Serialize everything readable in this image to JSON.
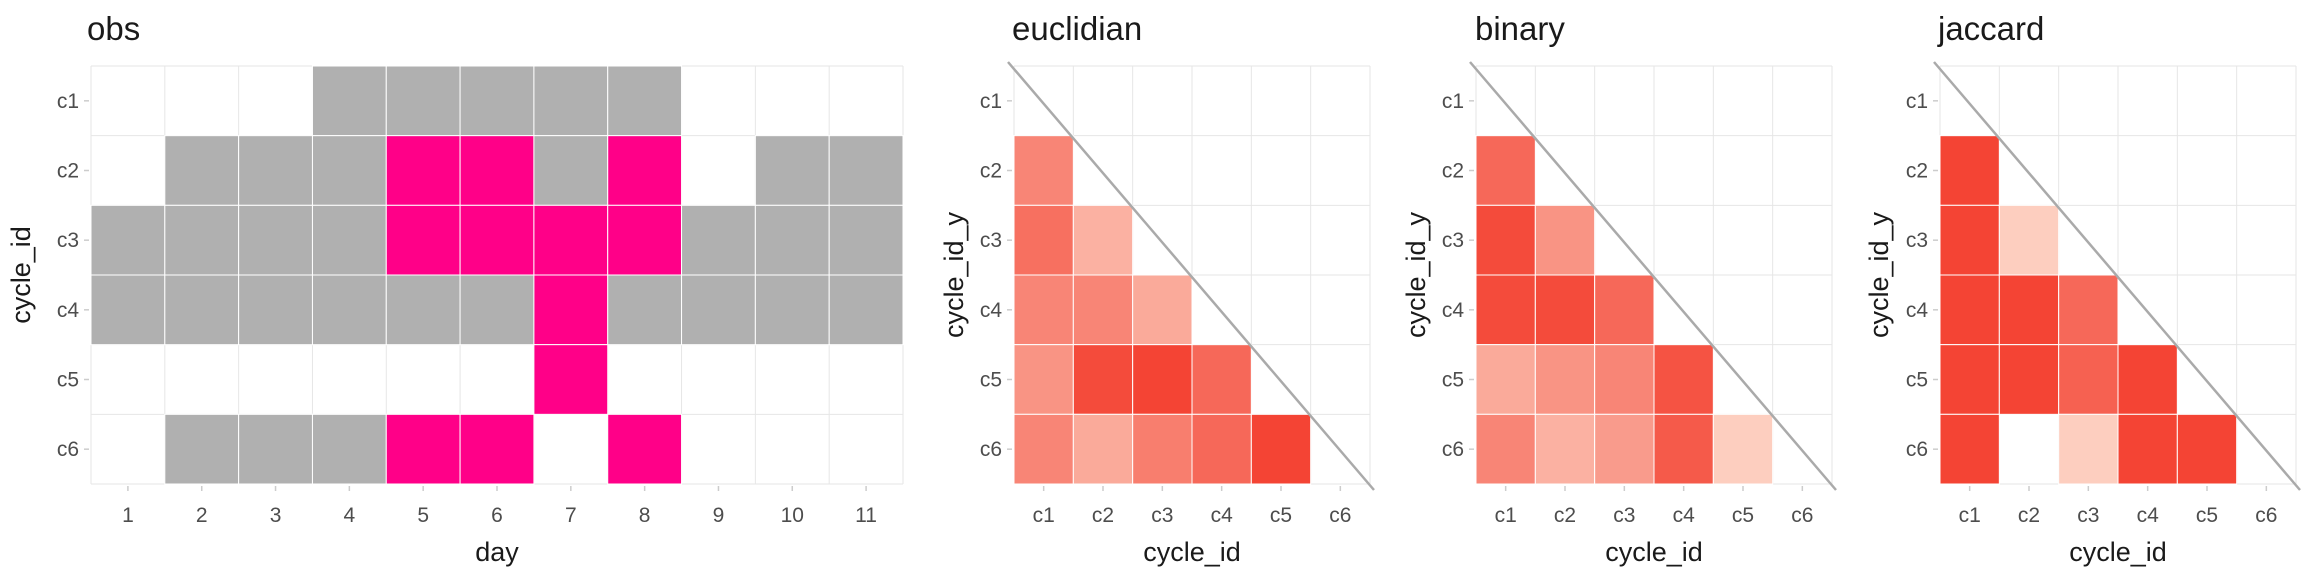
{
  "chart_data": [
    {
      "type": "heatmap",
      "title": "obs",
      "xlabel": "day",
      "ylabel": "cycle_id",
      "x": [
        "1",
        "2",
        "3",
        "4",
        "5",
        "6",
        "7",
        "8",
        "9",
        "10",
        "11"
      ],
      "y": [
        "c1",
        "c2",
        "c3",
        "c4",
        "c5",
        "c6"
      ],
      "legend": "none",
      "colors": {
        "0": "#b0b0b0",
        "1": "#ff0088"
      },
      "cells": [
        {
          "y": "c1",
          "x": "4",
          "value": 0
        },
        {
          "y": "c1",
          "x": "5",
          "value": 0
        },
        {
          "y": "c1",
          "x": "6",
          "value": 0
        },
        {
          "y": "c1",
          "x": "7",
          "value": 0
        },
        {
          "y": "c1",
          "x": "8",
          "value": 0
        },
        {
          "y": "c2",
          "x": "2",
          "value": 0
        },
        {
          "y": "c2",
          "x": "3",
          "value": 0
        },
        {
          "y": "c2",
          "x": "4",
          "value": 0
        },
        {
          "y": "c2",
          "x": "5",
          "value": 1
        },
        {
          "y": "c2",
          "x": "6",
          "value": 1
        },
        {
          "y": "c2",
          "x": "7",
          "value": 0
        },
        {
          "y": "c2",
          "x": "8",
          "value": 1
        },
        {
          "y": "c2",
          "x": "10",
          "value": 0
        },
        {
          "y": "c2",
          "x": "11",
          "value": 0
        },
        {
          "y": "c3",
          "x": "1",
          "value": 0
        },
        {
          "y": "c3",
          "x": "2",
          "value": 0
        },
        {
          "y": "c3",
          "x": "3",
          "value": 0
        },
        {
          "y": "c3",
          "x": "4",
          "value": 0
        },
        {
          "y": "c3",
          "x": "5",
          "value": 1
        },
        {
          "y": "c3",
          "x": "6",
          "value": 1
        },
        {
          "y": "c3",
          "x": "7",
          "value": 1
        },
        {
          "y": "c3",
          "x": "8",
          "value": 1
        },
        {
          "y": "c3",
          "x": "9",
          "value": 0
        },
        {
          "y": "c3",
          "x": "10",
          "value": 0
        },
        {
          "y": "c3",
          "x": "11",
          "value": 0
        },
        {
          "y": "c4",
          "x": "1",
          "value": 0
        },
        {
          "y": "c4",
          "x": "2",
          "value": 0
        },
        {
          "y": "c4",
          "x": "3",
          "value": 0
        },
        {
          "y": "c4",
          "x": "4",
          "value": 0
        },
        {
          "y": "c4",
          "x": "5",
          "value": 0
        },
        {
          "y": "c4",
          "x": "6",
          "value": 0
        },
        {
          "y": "c4",
          "x": "7",
          "value": 1
        },
        {
          "y": "c4",
          "x": "8",
          "value": 0
        },
        {
          "y": "c4",
          "x": "9",
          "value": 0
        },
        {
          "y": "c4",
          "x": "10",
          "value": 0
        },
        {
          "y": "c4",
          "x": "11",
          "value": 0
        },
        {
          "y": "c5",
          "x": "7",
          "value": 1
        },
        {
          "y": "c6",
          "x": "2",
          "value": 0
        },
        {
          "y": "c6",
          "x": "3",
          "value": 0
        },
        {
          "y": "c6",
          "x": "4",
          "value": 0
        },
        {
          "y": "c6",
          "x": "5",
          "value": 1
        },
        {
          "y": "c6",
          "x": "6",
          "value": 1
        },
        {
          "y": "c6",
          "x": "8",
          "value": 1
        }
      ]
    },
    {
      "type": "heatmap",
      "title": "euclidian",
      "xlabel": "cycle_id",
      "ylabel": "cycle_id_y",
      "x": [
        "c1",
        "c2",
        "c3",
        "c4",
        "c5",
        "c6"
      ],
      "y": [
        "c1",
        "c2",
        "c3",
        "c4",
        "c5",
        "c6"
      ],
      "diagonal_line": true,
      "legend": "none",
      "color_scale": {
        "low": "#fdd5c6",
        "high": "#f44434"
      },
      "cells": [
        {
          "y": "c2",
          "x": "c1",
          "value": 0.55
        },
        {
          "y": "c3",
          "x": "c1",
          "value": 0.7
        },
        {
          "y": "c3",
          "x": "c2",
          "value": 0.25
        },
        {
          "y": "c4",
          "x": "c1",
          "value": 0.55
        },
        {
          "y": "c4",
          "x": "c2",
          "value": 0.55
        },
        {
          "y": "c4",
          "x": "c3",
          "value": 0.3
        },
        {
          "y": "c5",
          "x": "c1",
          "value": 0.45
        },
        {
          "y": "c5",
          "x": "c2",
          "value": 0.95
        },
        {
          "y": "c5",
          "x": "c3",
          "value": 1.0
        },
        {
          "y": "c5",
          "x": "c4",
          "value": 0.75
        },
        {
          "y": "c6",
          "x": "c1",
          "value": 0.55
        },
        {
          "y": "c6",
          "x": "c2",
          "value": 0.3
        },
        {
          "y": "c6",
          "x": "c3",
          "value": 0.6
        },
        {
          "y": "c6",
          "x": "c4",
          "value": 0.75
        },
        {
          "y": "c6",
          "x": "c5",
          "value": 1.0
        }
      ]
    },
    {
      "type": "heatmap",
      "title": "binary",
      "xlabel": "cycle_id",
      "ylabel": "cycle_id_y",
      "x": [
        "c1",
        "c2",
        "c3",
        "c4",
        "c5",
        "c6"
      ],
      "y": [
        "c1",
        "c2",
        "c3",
        "c4",
        "c5",
        "c6"
      ],
      "diagonal_line": true,
      "legend": "none",
      "color_scale": {
        "low": "#fdd5c6",
        "high": "#f44434"
      },
      "cells": [
        {
          "y": "c2",
          "x": "c1",
          "value": 0.75
        },
        {
          "y": "c3",
          "x": "c1",
          "value": 0.95
        },
        {
          "y": "c3",
          "x": "c2",
          "value": 0.45
        },
        {
          "y": "c4",
          "x": "c1",
          "value": 0.95
        },
        {
          "y": "c4",
          "x": "c2",
          "value": 0.95
        },
        {
          "y": "c4",
          "x": "c3",
          "value": 0.75
        },
        {
          "y": "c5",
          "x": "c1",
          "value": 0.3
        },
        {
          "y": "c5",
          "x": "c2",
          "value": 0.45
        },
        {
          "y": "c5",
          "x": "c3",
          "value": 0.55
        },
        {
          "y": "c5",
          "x": "c4",
          "value": 0.9
        },
        {
          "y": "c6",
          "x": "c1",
          "value": 0.55
        },
        {
          "y": "c6",
          "x": "c2",
          "value": 0.25
        },
        {
          "y": "c6",
          "x": "c3",
          "value": 0.4
        },
        {
          "y": "c6",
          "x": "c4",
          "value": 0.85
        },
        {
          "y": "c6",
          "x": "c5",
          "value": 0.05
        }
      ]
    },
    {
      "type": "heatmap",
      "title": "jaccard",
      "xlabel": "cycle_id",
      "ylabel": "cycle_id_y",
      "x": [
        "c1",
        "c2",
        "c3",
        "c4",
        "c5",
        "c6"
      ],
      "y": [
        "c1",
        "c2",
        "c3",
        "c4",
        "c5",
        "c6"
      ],
      "diagonal_line": true,
      "legend": "none",
      "color_scale": {
        "low": "#fdd5c6",
        "high": "#f44434"
      },
      "cells": [
        {
          "y": "c2",
          "x": "c1",
          "value": 1.0
        },
        {
          "y": "c3",
          "x": "c1",
          "value": 1.0
        },
        {
          "y": "c3",
          "x": "c2",
          "value": 0.05
        },
        {
          "y": "c4",
          "x": "c1",
          "value": 1.0
        },
        {
          "y": "c4",
          "x": "c2",
          "value": 1.0
        },
        {
          "y": "c4",
          "x": "c3",
          "value": 0.75
        },
        {
          "y": "c5",
          "x": "c1",
          "value": 1.0
        },
        {
          "y": "c5",
          "x": "c2",
          "value": 1.0
        },
        {
          "y": "c5",
          "x": "c3",
          "value": 0.8
        },
        {
          "y": "c5",
          "x": "c4",
          "value": 1.0
        },
        {
          "y": "c6",
          "x": "c1",
          "value": 1.0
        },
        {
          "y": "c6",
          "x": "c3",
          "value": 0.05
        },
        {
          "y": "c6",
          "x": "c4",
          "value": 1.0
        },
        {
          "y": "c6",
          "x": "c5",
          "value": 1.0
        }
      ]
    }
  ]
}
